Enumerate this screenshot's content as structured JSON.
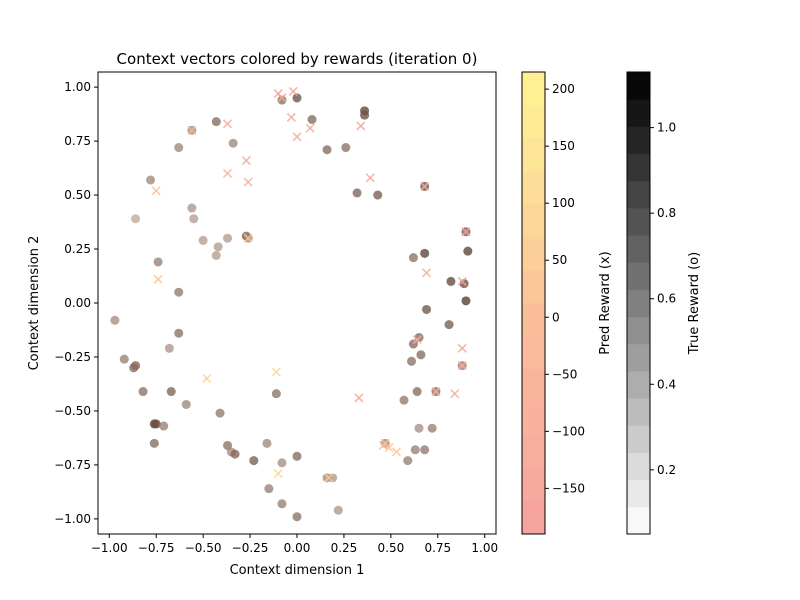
{
  "chart_data": {
    "type": "scatter",
    "title": "Context vectors colored by rewards (iteration 0)",
    "xlabel": "Context dimension 1",
    "ylabel": "Context dimension 2",
    "xlim": [
      -1.06,
      1.06
    ],
    "ylim": [
      -1.07,
      1.07
    ],
    "xticks": [
      -1.0,
      -0.75,
      -0.5,
      -0.25,
      0.0,
      0.25,
      0.5,
      0.75,
      1.0
    ],
    "xtick_labels": [
      "−1.00",
      "−0.75",
      "−0.50",
      "−0.25",
      "0.00",
      "0.25",
      "0.50",
      "0.75",
      "1.00"
    ],
    "yticks": [
      -1.0,
      -0.75,
      -0.5,
      -0.25,
      0.0,
      0.25,
      0.5,
      0.75,
      1.0
    ],
    "ytick_labels": [
      "−1.00",
      "−0.75",
      "−0.50",
      "−0.25",
      "0.00",
      "0.25",
      "0.50",
      "0.75",
      "1.00"
    ],
    "grid": false,
    "series": [
      {
        "marker": "x",
        "colorbar": "Pred Reward (x)",
        "points": [
          [
            -0.1,
            0.97,
            -150
          ],
          [
            -0.08,
            0.95,
            -160
          ],
          [
            -0.02,
            0.98,
            -140
          ],
          [
            -0.03,
            0.86,
            -120
          ],
          [
            0.07,
            0.81,
            -110
          ],
          [
            -0.37,
            0.83,
            -90
          ],
          [
            -0.27,
            0.66,
            -100
          ],
          [
            -0.37,
            0.6,
            -30
          ],
          [
            -0.26,
            0.56,
            -80
          ],
          [
            -0.75,
            0.52,
            10
          ],
          [
            -0.74,
            0.11,
            40
          ],
          [
            0.0,
            0.77,
            -110
          ],
          [
            0.34,
            0.82,
            -140
          ],
          [
            0.39,
            0.58,
            -100
          ],
          [
            0.68,
            0.54,
            -120
          ],
          [
            0.9,
            0.33,
            -150
          ],
          [
            0.69,
            0.14,
            -110
          ],
          [
            0.88,
            0.1,
            -140
          ],
          [
            0.88,
            -0.21,
            -120
          ],
          [
            0.88,
            -0.29,
            -80
          ],
          [
            0.84,
            -0.42,
            -90
          ],
          [
            0.74,
            -0.41,
            -70
          ],
          [
            0.33,
            -0.44,
            -130
          ],
          [
            0.46,
            -0.66,
            0
          ],
          [
            0.49,
            -0.67,
            20
          ],
          [
            0.53,
            -0.69,
            40
          ],
          [
            0.47,
            -0.65,
            20
          ],
          [
            -0.11,
            -0.32,
            110
          ],
          [
            -0.48,
            -0.35,
            80
          ],
          [
            -0.1,
            -0.79,
            90
          ],
          [
            0.17,
            -0.81,
            60
          ],
          [
            -0.26,
            0.3,
            50
          ],
          [
            0.64,
            -0.17,
            -80
          ],
          [
            -0.56,
            0.8,
            -70
          ]
        ]
      },
      {
        "marker": "o",
        "colorbar": "True Reward (o)",
        "points": [
          [
            -0.08,
            0.94,
            0.7
          ],
          [
            0.0,
            0.95,
            0.95
          ],
          [
            0.08,
            0.85,
            0.75
          ],
          [
            0.36,
            0.89,
            1.05
          ],
          [
            0.36,
            0.87,
            0.95
          ],
          [
            -0.43,
            0.84,
            0.75
          ],
          [
            -0.56,
            0.8,
            0.5
          ],
          [
            -0.63,
            0.72,
            0.55
          ],
          [
            -0.34,
            0.74,
            0.55
          ],
          [
            0.16,
            0.71,
            0.75
          ],
          [
            0.26,
            0.72,
            0.7
          ],
          [
            -0.78,
            0.57,
            0.55
          ],
          [
            0.32,
            0.51,
            0.8
          ],
          [
            0.43,
            0.5,
            0.85
          ],
          [
            0.68,
            0.54,
            0.9
          ],
          [
            -0.56,
            0.44,
            0.45
          ],
          [
            -0.55,
            0.39,
            0.4
          ],
          [
            -0.86,
            0.39,
            0.3
          ],
          [
            -0.5,
            0.29,
            0.4
          ],
          [
            -0.37,
            0.3,
            0.4
          ],
          [
            -0.27,
            0.31,
            0.8
          ],
          [
            -0.26,
            0.3,
            0.5
          ],
          [
            -0.43,
            0.22,
            0.4
          ],
          [
            -0.42,
            0.26,
            0.4
          ],
          [
            -0.74,
            0.19,
            0.6
          ],
          [
            -0.63,
            0.05,
            0.65
          ],
          [
            0.9,
            0.33,
            0.85
          ],
          [
            0.68,
            0.23,
            1.05
          ],
          [
            0.91,
            0.24,
            1.05
          ],
          [
            0.62,
            0.21,
            0.7
          ],
          [
            0.82,
            0.1,
            1.0
          ],
          [
            0.89,
            0.09,
            0.95
          ],
          [
            0.9,
            0.01,
            1.1
          ],
          [
            0.69,
            -0.03,
            0.9
          ],
          [
            0.81,
            -0.1,
            0.85
          ],
          [
            0.65,
            -0.16,
            0.75
          ],
          [
            0.62,
            -0.19,
            0.75
          ],
          [
            0.66,
            -0.24,
            0.75
          ],
          [
            0.61,
            -0.27,
            0.7
          ],
          [
            0.88,
            -0.29,
            0.6
          ],
          [
            -0.97,
            -0.08,
            0.5
          ],
          [
            -0.63,
            -0.14,
            0.7
          ],
          [
            -0.68,
            -0.21,
            0.45
          ],
          [
            -0.92,
            -0.26,
            0.6
          ],
          [
            -0.86,
            -0.29,
            0.8
          ],
          [
            -0.87,
            -0.3,
            0.75
          ],
          [
            -0.82,
            -0.41,
            0.7
          ],
          [
            -0.67,
            -0.41,
            0.8
          ],
          [
            -0.59,
            -0.47,
            0.55
          ],
          [
            -0.41,
            -0.51,
            0.65
          ],
          [
            -0.76,
            -0.56,
            1.1
          ],
          [
            -0.75,
            -0.56,
            1.0
          ],
          [
            -0.71,
            -0.57,
            0.6
          ],
          [
            -0.76,
            -0.65,
            0.75
          ],
          [
            -0.37,
            -0.66,
            0.7
          ],
          [
            -0.35,
            -0.69,
            0.5
          ],
          [
            -0.33,
            -0.7,
            0.8
          ],
          [
            -0.23,
            -0.73,
            0.85
          ],
          [
            -0.16,
            -0.65,
            0.55
          ],
          [
            -0.11,
            -0.42,
            0.7
          ],
          [
            -0.08,
            -0.74,
            0.5
          ],
          [
            0.0,
            -0.71,
            0.75
          ],
          [
            -0.15,
            -0.86,
            0.6
          ],
          [
            -0.08,
            -0.93,
            0.6
          ],
          [
            0.0,
            -0.99,
            0.7
          ],
          [
            0.22,
            -0.96,
            0.45
          ],
          [
            0.16,
            -0.81,
            0.5
          ],
          [
            0.19,
            -0.81,
            0.45
          ],
          [
            0.57,
            -0.45,
            0.65
          ],
          [
            0.64,
            -0.41,
            0.75
          ],
          [
            0.74,
            -0.41,
            0.7
          ],
          [
            0.72,
            -0.58,
            0.6
          ],
          [
            0.65,
            -0.58,
            0.5
          ],
          [
            0.63,
            -0.68,
            0.6
          ],
          [
            0.68,
            -0.68,
            0.65
          ],
          [
            0.59,
            -0.73,
            0.6
          ],
          [
            0.47,
            -0.65,
            0.55
          ]
        ]
      }
    ],
    "colorbars": [
      {
        "label": "Pred Reward (x)",
        "min": -190,
        "max": 215,
        "ticks": [
          -150,
          -100,
          -50,
          0,
          50,
          100,
          150,
          200
        ],
        "tick_labels": [
          "−150",
          "−100",
          "−50",
          "0",
          "50",
          "100",
          "150",
          "200"
        ],
        "colormap": "light red to light yellow",
        "stops": [
          "#f49a98",
          "#f7a99a",
          "#f8b296",
          "#fbbf95",
          "#fcd293",
          "#fde592",
          "#fff28b"
        ]
      },
      {
        "label": "True Reward (o)",
        "min": 0.05,
        "max": 1.13,
        "ticks": [
          0.2,
          0.4,
          0.6,
          0.8,
          1.0
        ],
        "tick_labels": [
          "0.2",
          "0.4",
          "0.6",
          "0.8",
          "1.0"
        ],
        "colormap": "white to black",
        "stops": [
          "#ffffff",
          "#000000"
        ]
      }
    ]
  }
}
